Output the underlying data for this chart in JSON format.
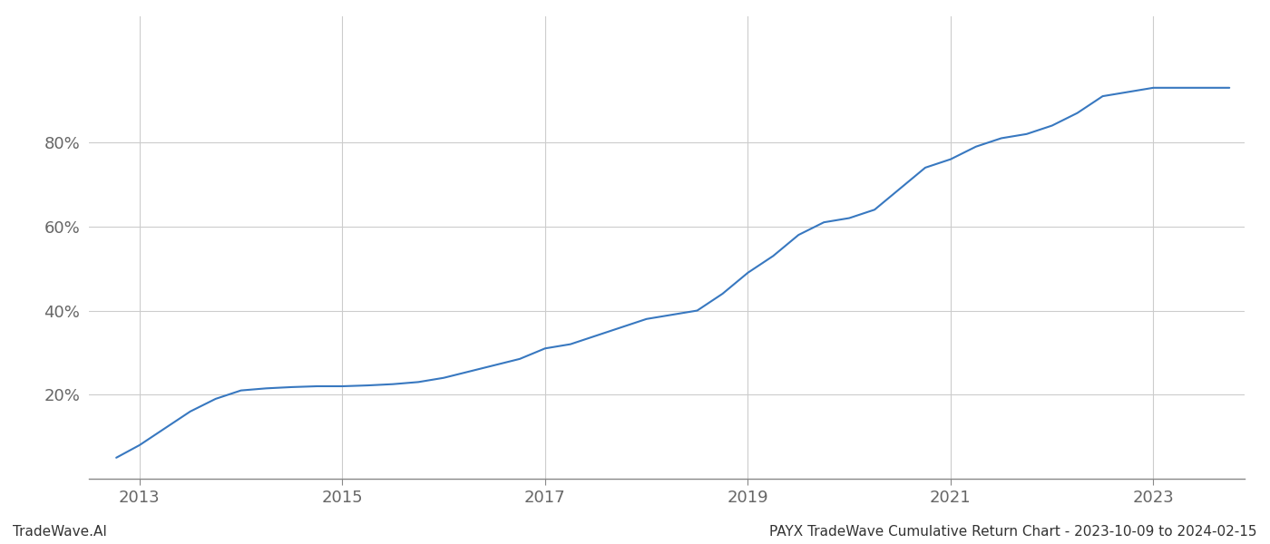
{
  "title": "PAYX TradeWave Cumulative Return Chart - 2023-10-09 to 2024-02-15",
  "watermark": "TradeWave.AI",
  "line_color": "#3878c0",
  "background_color": "#ffffff",
  "grid_color": "#cccccc",
  "x_tick_labels": [
    "2013",
    "2015",
    "2017",
    "2019",
    "2021",
    "2023"
  ],
  "x_tick_years": [
    2013,
    2015,
    2017,
    2019,
    2021,
    2023
  ],
  "y_tick_values": [
    20,
    40,
    60,
    80
  ],
  "xlim": [
    2012.5,
    2023.9
  ],
  "ylim": [
    0,
    110
  ],
  "data_x": [
    2012.77,
    2013.0,
    2013.25,
    2013.5,
    2013.75,
    2014.0,
    2014.25,
    2014.5,
    2014.75,
    2015.0,
    2015.25,
    2015.5,
    2015.75,
    2016.0,
    2016.25,
    2016.5,
    2016.75,
    2017.0,
    2017.25,
    2017.5,
    2017.75,
    2018.0,
    2018.25,
    2018.5,
    2018.75,
    2019.0,
    2019.25,
    2019.5,
    2019.75,
    2020.0,
    2020.25,
    2020.5,
    2020.75,
    2021.0,
    2021.25,
    2021.5,
    2021.75,
    2022.0,
    2022.25,
    2022.5,
    2022.75,
    2023.0,
    2023.25,
    2023.5,
    2023.75
  ],
  "data_y": [
    5,
    8,
    12,
    16,
    19,
    21,
    21.5,
    21.8,
    22,
    22,
    22.2,
    22.5,
    23,
    24,
    25.5,
    27,
    28.5,
    31,
    32,
    34,
    36,
    38,
    39,
    40,
    44,
    49,
    53,
    58,
    61,
    62,
    64,
    69,
    74,
    76,
    79,
    81,
    82,
    84,
    87,
    91,
    92,
    93,
    93,
    93,
    93
  ]
}
